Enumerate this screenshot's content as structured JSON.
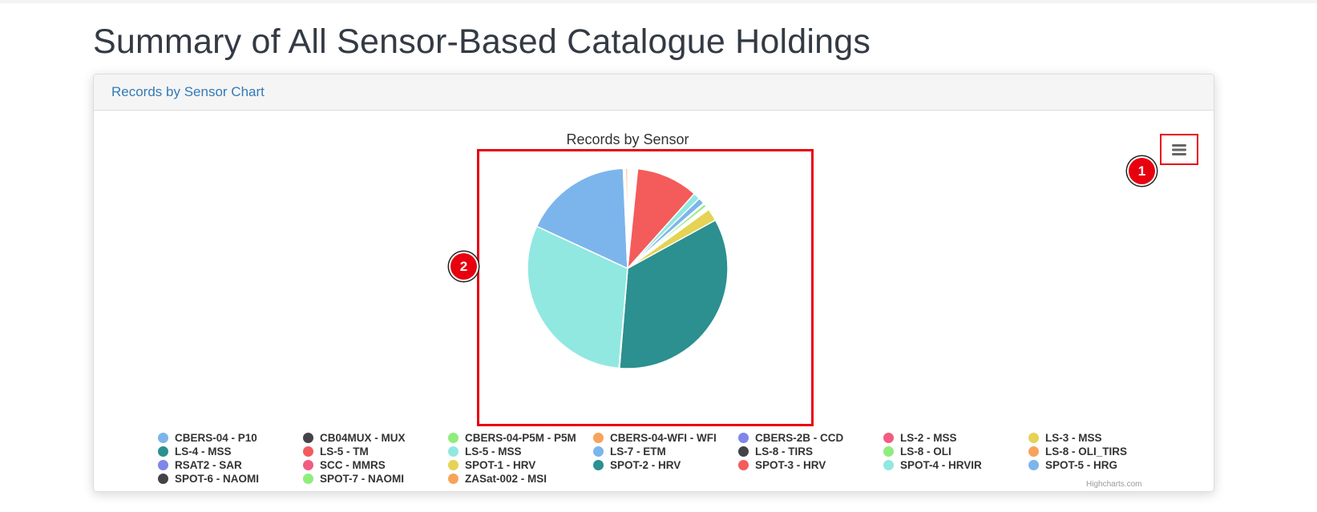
{
  "page": {
    "title": "Summary of All Sensor-Based Catalogue Holdings"
  },
  "panel": {
    "heading_link": "Records by Sensor Chart"
  },
  "annotations": {
    "marker_1": "1",
    "marker_2": "2"
  },
  "chart": {
    "menu_icon": "hamburger-menu-icon",
    "credits": "Highcharts.com"
  },
  "chart_data": {
    "type": "pie",
    "title": "Records by Sensor",
    "legend_position": "bottom",
    "slice_border_color": "#ffffff",
    "slices": [
      {
        "name": "CBERS-04 - P10",
        "value": 0.2,
        "color": "#7cb5ec"
      },
      {
        "name": "CB04MUX - MUX",
        "value": 0.2,
        "color": "#434348"
      },
      {
        "name": "CBERS-04-P5M - P5M",
        "value": 0.2,
        "color": "#90ed7d"
      },
      {
        "name": "CBERS-04-WFI - WFI",
        "value": 0.2,
        "color": "#f7a35c"
      },
      {
        "name": "CBERS-2B - CCD",
        "value": 0.2,
        "color": "#8085e9"
      },
      {
        "name": "LS-2 - MSS",
        "value": 0.2,
        "color": "#f15c80"
      },
      {
        "name": "LS-3 - MSS",
        "value": 0.2,
        "color": "#e4d354"
      },
      {
        "name": "LS-4 - MSS",
        "value": 0.2,
        "color": "#2b908f"
      },
      {
        "name": "LS-5 - TM",
        "value": 10.0,
        "color": "#f45b5b"
      },
      {
        "name": "LS-5 - MSS",
        "value": 1.1,
        "color": "#91e8e1"
      },
      {
        "name": "LS-7 - ETM",
        "value": 1.0,
        "color": "#7cb5ec"
      },
      {
        "name": "LS-8 - TIRS",
        "value": 0.2,
        "color": "#434348"
      },
      {
        "name": "LS-8 - OLI",
        "value": 0.5,
        "color": "#90ed7d"
      },
      {
        "name": "LS-8 - OLI_TIRS",
        "value": 0.2,
        "color": "#f7a35c"
      },
      {
        "name": "RSAT2 - SAR",
        "value": 0.2,
        "color": "#8085e9"
      },
      {
        "name": "SCC - MMRS",
        "value": 0.2,
        "color": "#f15c80"
      },
      {
        "name": "SPOT-1 - HRV",
        "value": 2.0,
        "color": "#e4d354"
      },
      {
        "name": "SPOT-2 - HRV",
        "value": 34.3,
        "color": "#2b908f"
      },
      {
        "name": "SPOT-3 - HRV",
        "value": 0.1,
        "color": "#f45b5b"
      },
      {
        "name": "SPOT-4 - HRVIR",
        "value": 30.5,
        "color": "#91e8e1"
      },
      {
        "name": "SPOT-5 - HRG",
        "value": 17.4,
        "color": "#7cb5ec"
      },
      {
        "name": "SPOT-6 - NAOMI",
        "value": 0.2,
        "color": "#434348"
      },
      {
        "name": "SPOT-7 - NAOMI",
        "value": 0.2,
        "color": "#90ed7d"
      },
      {
        "name": "ZASat-002 - MSI",
        "value": 0.3,
        "color": "#f7a35c"
      }
    ]
  }
}
